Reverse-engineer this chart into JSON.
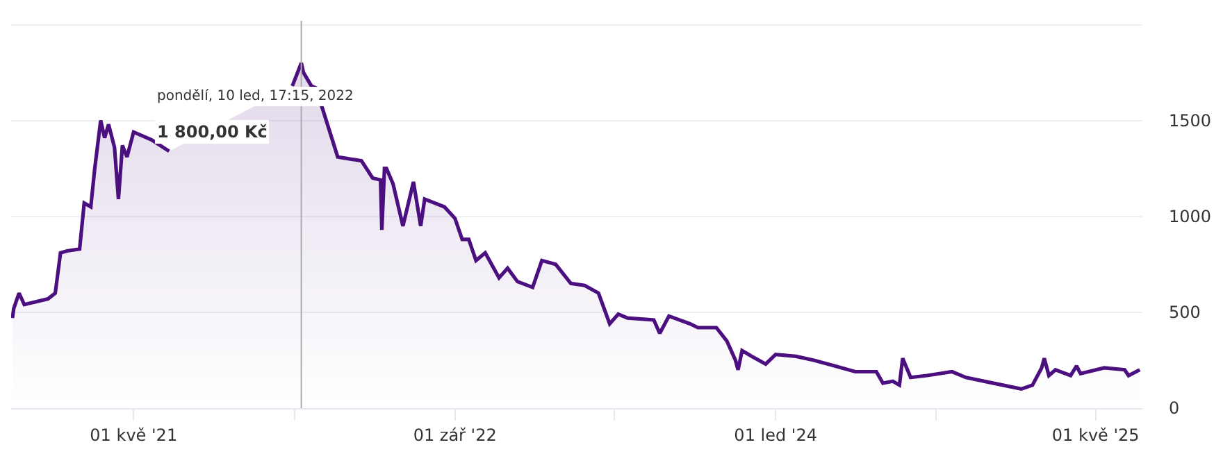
{
  "chart_data": {
    "type": "area",
    "x": [
      "2020-10-29",
      "2020-10-31",
      "2020-11-08",
      "2020-11-16",
      "2020-12-22",
      "2021-01-02",
      "2021-01-10",
      "2021-01-20",
      "2021-02-08",
      "2021-02-15",
      "2021-02-25",
      "2021-03-03",
      "2021-03-12",
      "2021-03-18",
      "2021-03-24",
      "2021-04-02",
      "2021-04-08",
      "2021-04-14",
      "2021-04-21",
      "2021-05-01",
      "2021-05-28",
      "2021-06-24",
      "2021-08-20",
      "2021-12-03",
      "2021-12-28",
      "2022-01-10T17:15",
      "2022-01-14",
      "2022-01-26",
      "2022-02-02",
      "2022-03-07",
      "2022-04-12",
      "2022-04-29",
      "2022-05-11",
      "2022-05-13",
      "2022-05-17",
      "2022-05-20",
      "2022-05-30",
      "2022-06-14",
      "2022-06-30",
      "2022-07-11",
      "2022-07-17",
      "2022-08-16",
      "2022-09-01",
      "2022-09-12",
      "2022-09-22",
      "2022-10-03",
      "2022-10-17",
      "2022-11-07",
      "2022-11-20",
      "2022-12-05",
      "2022-12-28",
      "2023-01-11",
      "2023-02-01",
      "2023-02-24",
      "2023-03-17",
      "2023-04-07",
      "2023-04-24",
      "2023-05-07",
      "2023-05-21",
      "2023-06-30",
      "2023-07-09",
      "2023-07-23",
      "2023-08-24",
      "2023-09-05",
      "2023-10-03",
      "2023-10-19",
      "2023-11-01",
      "2023-11-05",
      "2023-11-11",
      "2023-11-26",
      "2023-12-17",
      "2024-01-01",
      "2024-02-01",
      "2024-02-28",
      "2024-03-31",
      "2024-05-01",
      "2024-06-02",
      "2024-06-12",
      "2024-06-27",
      "2024-07-07",
      "2024-07-12",
      "2024-07-24",
      "2024-08-18",
      "2024-09-25",
      "2024-10-16",
      "2024-11-27",
      "2025-01-08",
      "2025-01-25",
      "2025-02-08",
      "2025-02-12",
      "2025-02-19",
      "2025-03-01",
      "2025-03-24",
      "2025-04-02",
      "2025-04-08",
      "2025-05-14",
      "2025-06-14",
      "2025-06-20",
      "2025-07-07"
    ],
    "series": [
      {
        "color": "#4b0f7f",
        "values": [
          470,
          520,
          600,
          540,
          570,
          600,
          810,
          820,
          830,
          1070,
          1050,
          1250,
          1500,
          1410,
          1480,
          1360,
          1090,
          1370,
          1310,
          1440,
          1400,
          1340,
          null,
          null,
          1680,
          1800,
          1750,
          1680,
          1670,
          1310,
          1290,
          1200,
          1190,
          930,
          1250,
          1250,
          1170,
          950,
          1180,
          950,
          1090,
          1050,
          990,
          880,
          880,
          770,
          810,
          680,
          730,
          660,
          630,
          770,
          750,
          650,
          640,
          600,
          440,
          490,
          470,
          460,
          390,
          480,
          440,
          420,
          420,
          350,
          250,
          200,
          300,
          270,
          230,
          280,
          270,
          250,
          220,
          190,
          190,
          130,
          140,
          120,
          260,
          160,
          170,
          190,
          160,
          130,
          100,
          120,
          210,
          260,
          170,
          200,
          170,
          220,
          180,
          210,
          200,
          170,
          200
        ]
      }
    ],
    "xlim": [
      "2020-10-27",
      "2025-07-11"
    ],
    "xticks": [
      {
        "value": "2021-05-01",
        "label": "01 kvě '21"
      },
      {
        "value": "2022-01-01",
        "label": null
      },
      {
        "value": "2022-09-01",
        "label": "01 zář '22"
      },
      {
        "value": "2023-05-01",
        "label": null
      },
      {
        "value": "2024-01-01",
        "label": "01 led '24"
      },
      {
        "value": "2024-09-01",
        "label": null
      },
      {
        "value": "2025-05-01",
        "label": "01 kvě '25"
      }
    ],
    "ylim": [
      0,
      2020
    ],
    "yticks": [
      0,
      500,
      1000,
      1500,
      {
        "value": 2000,
        "label": null
      }
    ],
    "grid": "y",
    "ref_lines": [
      {
        "axis": "x",
        "value": "2022-01-10T17:15",
        "color": "#aaaaaa"
      }
    ],
    "annotations": [
      "pondělí, 10 led, 17:15, 2022",
      "1 800,00 Kč"
    ]
  }
}
